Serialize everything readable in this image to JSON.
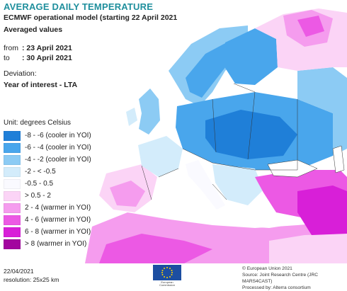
{
  "header": {
    "title": "AVERAGE DAILY TEMPERATURE",
    "subtitle": "ECMWF operational model (starting 22 April 2021",
    "averaged": "Averaged values",
    "from_label": "from",
    "from_value": ": 23 April 2021",
    "to_label": "to",
    "to_value": ": 30 April 2021",
    "deviation": "Deviation:",
    "year_of_interest": "Year of interest - LTA"
  },
  "legend": {
    "title": "Unit: degrees Celsius",
    "items": [
      {
        "label": "-8 - -6 (cooler in YOI)",
        "color": "#1f7fd8"
      },
      {
        "label": "-6 - -4 (cooler in YOI)",
        "color": "#49a6ec"
      },
      {
        "label": "-4 - -2 (cooler in YOI)",
        "color": "#8ccbf4"
      },
      {
        "label": "-2 - < -0.5",
        "color": "#d3ecfb"
      },
      {
        "label": "-0.5 - 0.5",
        "color": "#fafaff"
      },
      {
        "label": "> 0.5 - 2",
        "color": "#fbd4f6"
      },
      {
        "label": "2 - 4 (warmer in YOI)",
        "color": "#f59cee"
      },
      {
        "label": "4 - 6 (warmer in YOI)",
        "color": "#ec59e4"
      },
      {
        "label": "6 - 8 (warmer in YOI)",
        "color": "#d81fd8"
      },
      {
        "label": "> 8 (warmer in YOI)",
        "color": "#a3059f"
      }
    ]
  },
  "footer": {
    "date": "22/04/2021",
    "resolution": "resolution: 25x25 km",
    "eu_caption_1": "European",
    "eu_caption_2": "Commission",
    "credit_1": "© European Union 2021",
    "credit_2": "Source: Joint Research Centre (JRC MARS4CAST)",
    "credit_3": "Processed by: Alterra consortium"
  },
  "colors": {
    "title": "#1f8f9d",
    "sea": "#ffffff",
    "land_border": "#333333"
  }
}
